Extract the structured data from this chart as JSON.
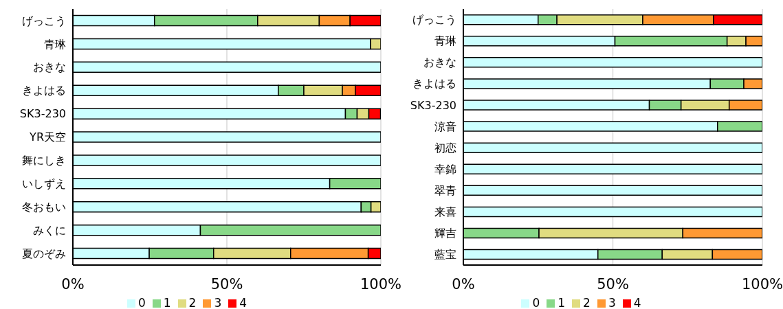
{
  "chart_data": [
    {
      "type": "bar",
      "orientation": "horizontal",
      "stacked": true,
      "grid": "x",
      "legend": "bottom",
      "categories": [
        "げっこう",
        "青琳",
        "おきな",
        "きよはる",
        "SK3-230",
        "YR天空",
        "舞にしき",
        "いしずえ",
        "冬おもい",
        "みくに",
        "夏のぞみ"
      ],
      "xlim": [
        0,
        100
      ],
      "xticks": [
        {
          "value": 0,
          "label": "0%"
        },
        {
          "value": 50,
          "label": "50%"
        },
        {
          "value": 100,
          "label": "100%"
        }
      ],
      "series": [
        {
          "name": "0",
          "color": "#ccffff",
          "values": [
            26.5,
            96.7,
            100,
            66.7,
            88.5,
            100,
            100,
            83.4,
            93.6,
            41.4,
            24.8
          ]
        },
        {
          "name": "1",
          "color": "#88d888",
          "values": [
            33.5,
            0,
            0,
            8.3,
            3.8,
            0,
            0,
            16.6,
            3.2,
            58.6,
            20.9
          ]
        },
        {
          "name": "2",
          "color": "#e0dc80",
          "values": [
            20,
            3.3,
            0,
            12.5,
            3.8,
            0,
            0,
            0,
            3.2,
            0,
            25
          ]
        },
        {
          "name": "3",
          "color": "#ff9933",
          "values": [
            10,
            0,
            0,
            4.2,
            0,
            0,
            0,
            0,
            0,
            0,
            25.2
          ]
        },
        {
          "name": "4",
          "color": "#ff0000",
          "values": [
            10,
            0,
            0,
            8.3,
            3.8,
            0,
            0,
            0,
            0,
            0,
            4.1
          ]
        }
      ]
    },
    {
      "type": "bar",
      "orientation": "horizontal",
      "stacked": true,
      "grid": "x",
      "legend": "bottom",
      "categories": [
        "げっこう",
        "青琳",
        "おきな",
        "きよはる",
        "SK3-230",
        "涼音",
        "初恋",
        "幸錦",
        "翠青",
        "来喜",
        "輝吉",
        "藍宝"
      ],
      "xlim": [
        0,
        100
      ],
      "xticks": [
        {
          "value": 0,
          "label": "0%"
        },
        {
          "value": 50,
          "label": "50%"
        },
        {
          "value": 100,
          "label": "100%"
        }
      ],
      "series": [
        {
          "name": "0",
          "color": "#ccffff",
          "values": [
            25,
            50.7,
            100,
            82.6,
            62.2,
            85,
            100,
            100,
            100,
            100,
            0,
            45
          ]
        },
        {
          "name": "1",
          "color": "#88d888",
          "values": [
            6.3,
            37.5,
            0,
            11.2,
            10.6,
            15,
            0,
            0,
            0,
            0,
            25.3,
            21.5
          ]
        },
        {
          "name": "2",
          "color": "#e0dc80",
          "values": [
            28.7,
            6.3,
            0,
            0,
            16.1,
            0,
            0,
            0,
            0,
            0,
            48.1,
            16.8
          ]
        },
        {
          "name": "3",
          "color": "#ff9933",
          "values": [
            23.7,
            5.5,
            0,
            6.2,
            11.1,
            0,
            0,
            0,
            0,
            0,
            26.6,
            16.7
          ]
        },
        {
          "name": "4",
          "color": "#ff0000",
          "values": [
            16.3,
            0,
            0,
            0,
            0,
            0,
            0,
            0,
            0,
            0,
            0,
            0
          ]
        }
      ]
    }
  ]
}
